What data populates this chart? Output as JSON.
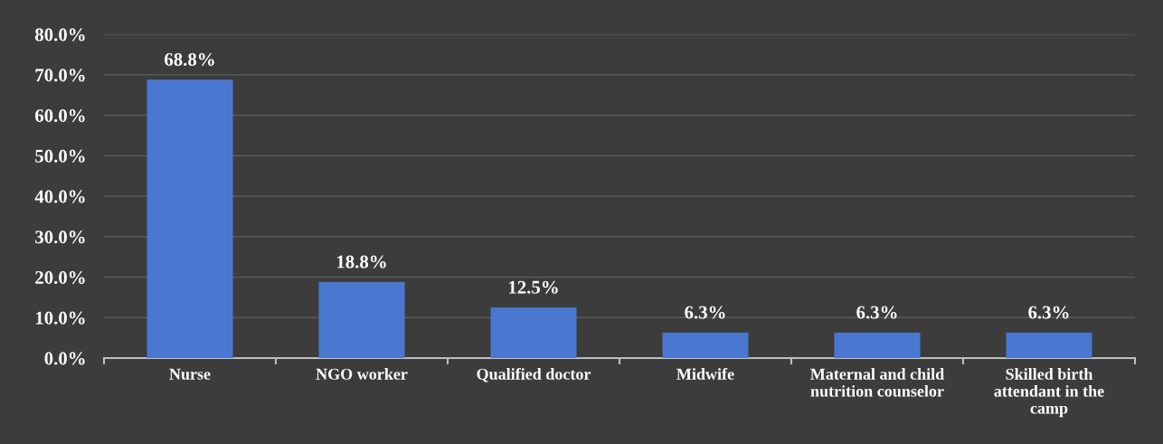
{
  "chart_data": {
    "type": "bar",
    "categories": [
      "Nurse",
      "NGO worker",
      "Qualified doctor",
      "Midwife",
      "Maternal and child\nnutrition counselor",
      "Skilled birth\nattendant in the\ncamp"
    ],
    "values": [
      68.8,
      18.8,
      12.5,
      6.3,
      6.3,
      6.3
    ],
    "value_labels": [
      "68.8%",
      "18.8%",
      "12.5%",
      "6.3%",
      "6.3%",
      "6.3%"
    ],
    "color": "#4a78d0",
    "ylim": [
      0,
      80
    ],
    "yticks": [
      {
        "value": 0,
        "label": "0.0%"
      },
      {
        "value": 10,
        "label": "10.0%"
      },
      {
        "value": 20,
        "label": "20.0%"
      },
      {
        "value": 30,
        "label": "30.0%"
      },
      {
        "value": 40,
        "label": "40.0%"
      },
      {
        "value": 50,
        "label": "50.0%"
      },
      {
        "value": 60,
        "label": "60.0%"
      },
      {
        "value": 70,
        "label": "70.0%"
      },
      {
        "value": 80,
        "label": "80.0%"
      }
    ],
    "grid": "y",
    "legend": false
  }
}
